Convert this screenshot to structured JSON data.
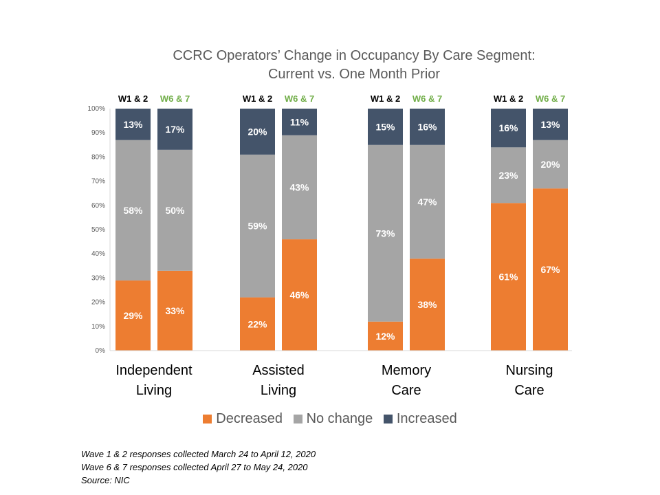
{
  "chart_data": {
    "type": "bar",
    "stacked": true,
    "title_lines": [
      "CCRC Operators’ Change in Occupancy By Care Segment:",
      "Current vs. One Month Prior"
    ],
    "ylim": [
      0,
      100
    ],
    "yticks": [
      "0%",
      "10%",
      "20%",
      "30%",
      "40%",
      "50%",
      "60%",
      "70%",
      "80%",
      "90%",
      "100%"
    ],
    "series": [
      {
        "name": "Decreased",
        "color": "#ED7D31"
      },
      {
        "name": "No change",
        "color": "#A5A5A5"
      },
      {
        "name": "Increased",
        "color": "#44546A"
      }
    ],
    "wave_labels": [
      {
        "text": "W1 & 2",
        "color": "#000000"
      },
      {
        "text": "W6 & 7",
        "color": "#70AD47"
      }
    ],
    "categories": [
      {
        "lines": [
          "Independent",
          "Living"
        ],
        "bars": [
          {
            "values": [
              29,
              58,
              13
            ],
            "labels": [
              "29%",
              "58%",
              "13%"
            ]
          },
          {
            "values": [
              33,
              50,
              17
            ],
            "labels": [
              "33%",
              "50%",
              "17%"
            ]
          }
        ]
      },
      {
        "lines": [
          "Assisted",
          "Living"
        ],
        "bars": [
          {
            "values": [
              22,
              59,
              20
            ],
            "labels": [
              "22%",
              "59%",
              "20%"
            ]
          },
          {
            "values": [
              46,
              43,
              11
            ],
            "labels": [
              "46%",
              "43%",
              "11%"
            ]
          }
        ]
      },
      {
        "lines": [
          "Memory",
          "Care"
        ],
        "bars": [
          {
            "values": [
              12,
              73,
              15
            ],
            "labels": [
              "12%",
              "73%",
              "15%"
            ]
          },
          {
            "values": [
              38,
              47,
              16
            ],
            "labels": [
              "38%",
              "47%",
              "16%"
            ]
          }
        ]
      },
      {
        "lines": [
          "Nursing",
          "Care"
        ],
        "bars": [
          {
            "values": [
              61,
              23,
              16
            ],
            "labels": [
              "61%",
              "23%",
              "16%"
            ]
          },
          {
            "values": [
              67,
              20,
              13
            ],
            "labels": [
              "67%",
              "20%",
              "13%"
            ]
          }
        ]
      }
    ]
  },
  "footnotes": [
    "Wave 1 & 2 responses collected March 24 to April 12, 2020",
    "Wave 6 & 7 responses collected April 27 to May 24, 2020",
    "Source: NIC"
  ]
}
